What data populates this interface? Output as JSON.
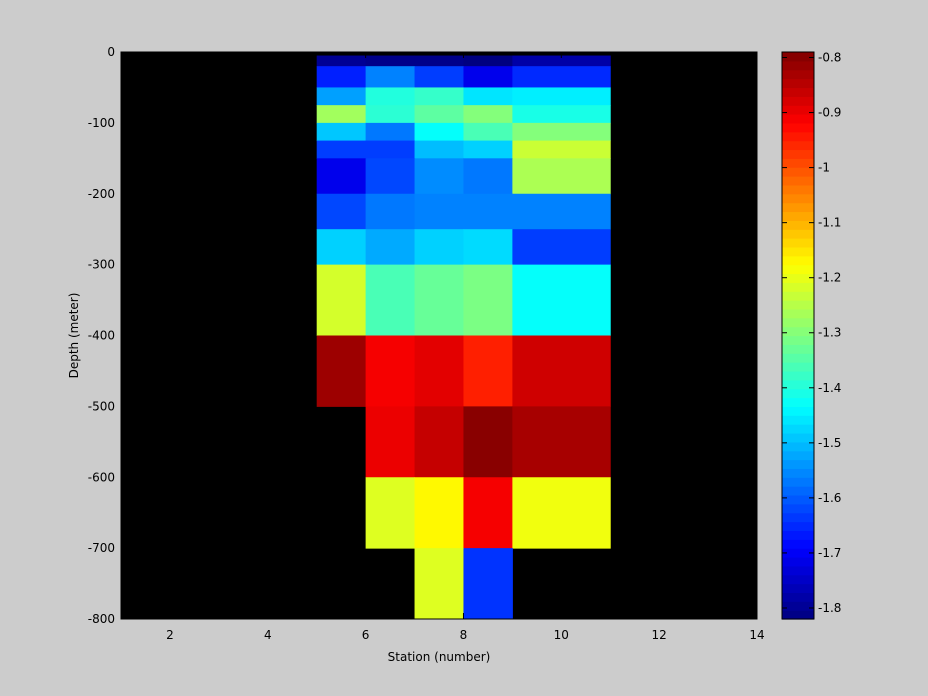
{
  "chart_data": {
    "type": "heatmap",
    "title": "",
    "xlabel": "Station (number)",
    "ylabel": "Depth (meter)",
    "xlim": [
      1,
      14
    ],
    "ylim": [
      -800,
      0
    ],
    "xticks": [
      2,
      4,
      6,
      8,
      10,
      12,
      14
    ],
    "yticks": [
      0,
      -100,
      -200,
      -300,
      -400,
      -500,
      -600,
      -700,
      -800
    ],
    "background_color": "#000000",
    "colorbar": {
      "colormap": "jet",
      "clim": [
        -1.82,
        -0.79
      ],
      "ticks": [
        -0.8,
        -0.9,
        -1,
        -1.1,
        -1.2,
        -1.3,
        -1.4,
        -1.5,
        -1.6,
        -1.7,
        -1.8
      ]
    },
    "columns": [
      {
        "x": [
          5,
          6
        ]
      },
      {
        "x": [
          6,
          7
        ]
      },
      {
        "x": [
          7,
          8
        ]
      },
      {
        "x": [
          8,
          9
        ]
      },
      {
        "x": [
          9,
          11
        ]
      }
    ],
    "rows": [
      {
        "y": [
          -5,
          -20
        ],
        "values": [
          -1.8,
          -1.81,
          -1.81,
          -1.82,
          -1.78
        ]
      },
      {
        "y": [
          -20,
          -50
        ],
        "values": [
          -1.66,
          -1.56,
          -1.63,
          -1.71,
          -1.65
        ]
      },
      {
        "y": [
          -50,
          -75
        ],
        "values": [
          -1.53,
          -1.4,
          -1.38,
          -1.46,
          -1.45
        ]
      },
      {
        "y": [
          -75,
          -100
        ],
        "values": [
          -1.27,
          -1.39,
          -1.34,
          -1.3,
          -1.41
        ]
      },
      {
        "y": [
          -100,
          -125
        ],
        "values": [
          -1.49,
          -1.57,
          -1.43,
          -1.36,
          -1.3
        ]
      },
      {
        "y": [
          -125,
          -150
        ],
        "values": [
          -1.63,
          -1.63,
          -1.5,
          -1.48,
          -1.23
        ]
      },
      {
        "y": [
          -150,
          -200
        ],
        "values": [
          -1.71,
          -1.62,
          -1.55,
          -1.57,
          -1.26
        ]
      },
      {
        "y": [
          -200,
          -250
        ],
        "values": [
          -1.62,
          -1.57,
          -1.56,
          -1.56,
          -1.56
        ]
      },
      {
        "y": [
          -250,
          -300
        ],
        "values": [
          -1.48,
          -1.52,
          -1.48,
          -1.47,
          -1.63
        ]
      },
      {
        "y": [
          -300,
          -400
        ],
        "values": [
          -1.22,
          -1.36,
          -1.33,
          -1.31,
          -1.43
        ]
      },
      {
        "y": [
          -400,
          -500
        ],
        "values": [
          -0.82,
          -0.91,
          -0.89,
          -0.95,
          -0.87
        ]
      },
      {
        "y": [
          -500,
          -600
        ],
        "values": [
          null,
          -0.9,
          -0.86,
          -0.8,
          -0.83
        ]
      },
      {
        "y": [
          -600,
          -700
        ],
        "values": [
          null,
          -1.21,
          -1.17,
          -0.91,
          -1.19
        ]
      },
      {
        "y": [
          -700,
          -800
        ],
        "values": [
          null,
          null,
          -1.21,
          -1.64,
          null
        ]
      }
    ]
  }
}
